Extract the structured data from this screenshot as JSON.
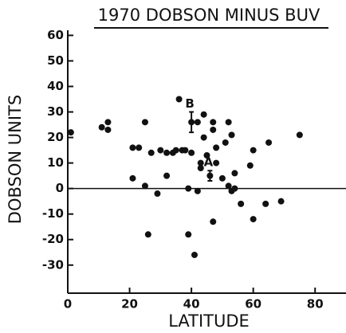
{
  "chart_data": {
    "type": "scatter",
    "title": "1970 DOBSON MINUS BUV",
    "x_label": "LATITUDE",
    "y_label": "DOBSON UNITS",
    "color": "#111111",
    "x": [
      1,
      11,
      13,
      13,
      21,
      21,
      23,
      25,
      25,
      26,
      27,
      29,
      30,
      32,
      32,
      34,
      35,
      36,
      37,
      38,
      39,
      39,
      40,
      41,
      42,
      42,
      43,
      43,
      44,
      44,
      45,
      47,
      47,
      47,
      48,
      48,
      50,
      51,
      52,
      52,
      53,
      53,
      54,
      54,
      56,
      59,
      60,
      60,
      64,
      65,
      69,
      75
    ],
    "values": [
      22,
      24,
      26,
      23,
      16,
      4,
      16,
      26,
      1,
      -18,
      14,
      -2,
      15,
      5,
      14,
      14,
      15,
      35,
      15,
      15,
      0,
      -18,
      14,
      -26,
      -1,
      26,
      10,
      8,
      29,
      20,
      13,
      26,
      -13,
      23,
      16,
      10,
      4,
      18,
      1,
      26,
      21,
      -1,
      6,
      0,
      -6,
      9,
      15,
      -12,
      -6,
      18,
      -5,
      21
    ],
    "annotations": [
      {
        "text": "B",
        "x": 40,
        "y": 26,
        "error": 4
      },
      {
        "text": "A",
        "x": 46,
        "y": 5,
        "error": 2
      }
    ],
    "xlim": [
      0,
      90
    ],
    "ylim": [
      -41,
      62
    ],
    "xticks": [
      0,
      20,
      40,
      60,
      80
    ],
    "yticks": [
      60,
      50,
      40,
      30,
      20,
      10,
      0,
      -10,
      -20,
      -30
    ],
    "zero_line": true
  }
}
